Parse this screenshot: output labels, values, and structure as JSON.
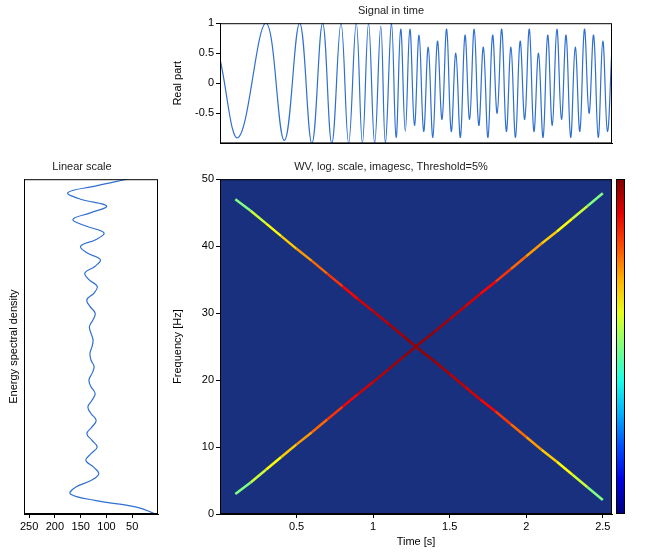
{
  "chart_data": [
    {
      "type": "line",
      "title": "Signal in time",
      "y_label": "Real part",
      "x": [
        0,
        0.12,
        0.3,
        0.42,
        0.52,
        0.6,
        0.67,
        0.73,
        0.79,
        0.84,
        0.89,
        0.93,
        0.97,
        1.01,
        1.05,
        1.08,
        1.12,
        1.15,
        1.18,
        1.21,
        1.24,
        1.27,
        1.3,
        1.33,
        1.36,
        1.39,
        1.42,
        1.45,
        1.48,
        1.51,
        1.54,
        1.57,
        1.6,
        1.63,
        1.66,
        1.69,
        1.72,
        1.75,
        1.78,
        1.81,
        1.84,
        1.87,
        1.9,
        1.93,
        1.96,
        1.99,
        2.02,
        2.05,
        2.08,
        2.11,
        2.14,
        2.17,
        2.2,
        2.23,
        2.26,
        2.29,
        2.32,
        2.35,
        2.38,
        2.41,
        2.44,
        2.47,
        2.5,
        2.53,
        2.56
      ],
      "values": [
        0.4,
        -0.9,
        1,
        -0.95,
        1,
        -1,
        1,
        -1,
        1,
        -1,
        1,
        -1,
        1,
        -1,
        0.95,
        -1,
        1,
        -0.9,
        0.9,
        -0.8,
        0.9,
        -0.7,
        0.8,
        -0.8,
        0.6,
        -0.9,
        0.7,
        -0.6,
        0.9,
        -0.8,
        0.5,
        -0.9,
        0.8,
        -0.6,
        0.9,
        -0.7,
        0.6,
        -0.9,
        0.8,
        -0.5,
        0.9,
        -0.8,
        0.6,
        -0.9,
        0.7,
        -0.6,
        0.9,
        -0.8,
        0.5,
        -0.9,
        0.8,
        -0.7,
        0.9,
        -0.6,
        0.8,
        -0.9,
        0.6,
        -0.8,
        0.9,
        -0.5,
        0.8,
        -0.9,
        0.7,
        -0.8,
        0.6
      ],
      "color": "#2f6fd0",
      "xlim": [
        0,
        2.56
      ],
      "ylim": [
        -1,
        1
      ],
      "yticks": [
        -0.5,
        0,
        0.5,
        1
      ],
      "grid": false,
      "tick_labels": "y"
    },
    {
      "type": "line",
      "orientation": "horizontal",
      "title": "Linear scale",
      "y_label": "Energy spectral density",
      "frequency": [
        0,
        1,
        2,
        3,
        4,
        5,
        6,
        7,
        8,
        9,
        10,
        11,
        12,
        13,
        14,
        15,
        16,
        17,
        18,
        19,
        20,
        21,
        22,
        23,
        24,
        25,
        26,
        27,
        28,
        29,
        30,
        31,
        32,
        33,
        34,
        35,
        36,
        37,
        38,
        39,
        40,
        41,
        42,
        43,
        44,
        45,
        46,
        47,
        48,
        49,
        50
      ],
      "values": [
        5,
        40,
        120,
        170,
        160,
        130,
        115,
        125,
        140,
        130,
        118,
        128,
        138,
        128,
        120,
        130,
        136,
        128,
        122,
        130,
        134,
        128,
        124,
        130,
        132,
        128,
        126,
        130,
        133,
        126,
        122,
        132,
        138,
        124,
        118,
        134,
        142,
        122,
        112,
        138,
        150,
        120,
        105,
        140,
        165,
        130,
        100,
        150,
        175,
        120,
        60
      ],
      "color": "#2f6fd0",
      "xlim": [
        0,
        260
      ],
      "xticks": [
        50,
        100,
        150,
        200,
        250
      ],
      "ylim": [
        0,
        50
      ],
      "grid": false,
      "tick_labels": "x"
    },
    {
      "type": "heatmap",
      "title": "WV, log. scale, imagesc, Threshold=5%",
      "x_label": "Time [s]",
      "y_label": "Frequency [Hz]",
      "lines": [
        {
          "x": [
            0.1,
            0.2,
            0.3,
            0.4,
            0.5,
            0.6,
            0.7,
            0.8,
            0.9,
            1.0,
            1.1,
            1.2,
            1.3,
            1.4,
            1.5,
            1.6,
            1.7,
            1.8,
            1.9,
            2.0,
            2.1,
            2.2,
            2.3,
            2.4,
            2.5
          ],
          "y": [
            47,
            45.3,
            43.4,
            41.5,
            39.6,
            37.8,
            35.9,
            34,
            32.1,
            30.3,
            28.4,
            26.5,
            24.6,
            22.8,
            20.9,
            19,
            17.1,
            15.3,
            13.4,
            11.5,
            9.6,
            7.8,
            5.9,
            4,
            2.1
          ],
          "intensity": [
            0.45,
            0.55,
            0.6,
            0.65,
            0.7,
            0.75,
            0.8,
            0.85,
            0.9,
            0.93,
            0.95,
            0.97,
            0.98,
            0.97,
            0.95,
            0.93,
            0.9,
            0.85,
            0.8,
            0.75,
            0.7,
            0.65,
            0.6,
            0.55,
            0.45
          ]
        },
        {
          "x": [
            0.1,
            0.2,
            0.3,
            0.4,
            0.5,
            0.6,
            0.7,
            0.8,
            0.9,
            1.0,
            1.1,
            1.2,
            1.3,
            1.4,
            1.5,
            1.6,
            1.7,
            1.8,
            1.9,
            2.0,
            2.1,
            2.2,
            2.3,
            2.4,
            2.5
          ],
          "y": [
            3,
            4.7,
            6.6,
            8.5,
            10.4,
            12.2,
            14.1,
            16,
            17.9,
            19.7,
            21.6,
            23.5,
            25.4,
            27.2,
            29.1,
            31,
            32.9,
            34.7,
            36.6,
            38.5,
            40.4,
            42.2,
            44.1,
            46,
            47.9
          ],
          "intensity": [
            0.45,
            0.55,
            0.6,
            0.65,
            0.7,
            0.75,
            0.8,
            0.85,
            0.9,
            0.93,
            0.95,
            0.97,
            0.98,
            0.97,
            0.95,
            0.93,
            0.9,
            0.85,
            0.8,
            0.75,
            0.7,
            0.65,
            0.6,
            0.55,
            0.45
          ]
        }
      ],
      "colorbar": {
        "range": [
          0,
          1
        ]
      },
      "xlim": [
        0,
        2.56
      ],
      "xticks": [
        0.5,
        1,
        1.5,
        2,
        2.5
      ],
      "ylim": [
        0,
        50
      ],
      "yticks": [
        0,
        10,
        20,
        30,
        40,
        50
      ],
      "grid": false
    }
  ]
}
